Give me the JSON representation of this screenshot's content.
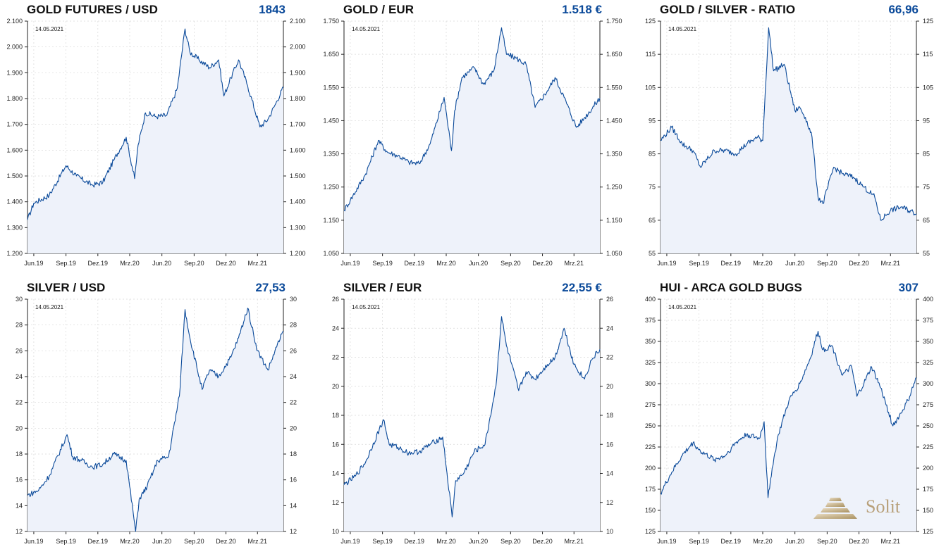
{
  "colors": {
    "line": "#0b4a9a",
    "fill": "#eef2fa",
    "value": "#0b4a9a",
    "grid": "#d8d8d8"
  },
  "x_ticks": [
    "Jun.19",
    "Sep.19",
    "Dez.19",
    "Mrz.20",
    "Jun.20",
    "Sep.20",
    "Dez.20",
    "Mrz.21"
  ],
  "date_label": "14.05.2021",
  "logo_text": "Solit",
  "chart_data": [
    {
      "type": "line",
      "title": "GOLD FUTURES / USD",
      "current_value": "1843",
      "ylim": [
        1200,
        2100
      ],
      "y_ticks": [
        "2.100",
        "2.000",
        "1.900",
        "1.800",
        "1.700",
        "1.600",
        "1.500",
        "1.400",
        "1.300",
        "1.200"
      ],
      "x": [
        "2019-05-14",
        "2019-06-01",
        "2019-07-15",
        "2019-09-01",
        "2019-10-01",
        "2019-11-15",
        "2019-12-15",
        "2020-01-15",
        "2020-02-20",
        "2020-03-15",
        "2020-03-25",
        "2020-04-15",
        "2020-05-15",
        "2020-06-15",
        "2020-07-15",
        "2020-08-06",
        "2020-08-20",
        "2020-09-15",
        "2020-10-15",
        "2020-11-10",
        "2020-11-25",
        "2020-12-15",
        "2021-01-06",
        "2021-02-01",
        "2021-03-08",
        "2021-03-31",
        "2021-04-20",
        "2021-05-14"
      ],
      "values": [
        1330,
        1395,
        1425,
        1540,
        1500,
        1465,
        1475,
        1560,
        1650,
        1490,
        1620,
        1745,
        1730,
        1735,
        1840,
        2070,
        1980,
        1950,
        1920,
        1950,
        1810,
        1880,
        1950,
        1850,
        1690,
        1720,
        1775,
        1843
      ]
    },
    {
      "type": "line",
      "title": "GOLD / EUR",
      "current_value": "1.518 €",
      "ylim": [
        1050,
        1750
      ],
      "y_ticks": [
        "1.750",
        "1.650",
        "1.550",
        "1.450",
        "1.350",
        "1.250",
        "1.150",
        "1.050"
      ],
      "x": [
        "2019-05-14",
        "2019-06-01",
        "2019-07-15",
        "2019-08-20",
        "2019-09-15",
        "2019-10-15",
        "2019-11-15",
        "2019-12-15",
        "2020-01-15",
        "2020-02-24",
        "2020-03-16",
        "2020-03-25",
        "2020-04-15",
        "2020-05-20",
        "2020-06-15",
        "2020-07-15",
        "2020-08-06",
        "2020-08-20",
        "2020-09-15",
        "2020-10-15",
        "2020-11-10",
        "2020-12-15",
        "2021-01-06",
        "2021-02-01",
        "2021-03-08",
        "2021-04-01",
        "2021-05-14"
      ],
      "values": [
        1180,
        1210,
        1290,
        1390,
        1355,
        1345,
        1325,
        1320,
        1380,
        1520,
        1360,
        1480,
        1580,
        1610,
        1560,
        1600,
        1730,
        1650,
        1640,
        1620,
        1490,
        1540,
        1580,
        1520,
        1430,
        1460,
        1518
      ]
    },
    {
      "type": "line",
      "title": "GOLD / SILVER - RATIO",
      "current_value": "66,96",
      "ylim": [
        55,
        125
      ],
      "y_ticks": [
        "125",
        "115",
        "105",
        "95",
        "85",
        "75",
        "65",
        "55"
      ],
      "x": [
        "2019-05-14",
        "2019-06-15",
        "2019-07-15",
        "2019-08-15",
        "2019-09-05",
        "2019-10-15",
        "2019-11-15",
        "2019-12-15",
        "2020-01-15",
        "2020-02-15",
        "2020-03-01",
        "2020-03-18",
        "2020-04-01",
        "2020-05-01",
        "2020-06-01",
        "2020-06-15",
        "2020-07-01",
        "2020-07-20",
        "2020-08-06",
        "2020-08-20",
        "2020-09-20",
        "2020-10-15",
        "2020-11-15",
        "2020-12-15",
        "2021-01-15",
        "2021-02-01",
        "2021-03-01",
        "2021-04-01",
        "2021-05-14"
      ],
      "values": [
        89,
        93,
        88,
        86,
        81,
        86,
        86,
        85,
        88,
        90,
        89,
        123,
        110,
        112,
        98,
        99,
        96,
        90,
        72,
        70,
        81,
        79,
        78,
        75,
        72,
        65,
        68,
        69,
        66.96
      ]
    },
    {
      "type": "line",
      "title": "SILVER / USD",
      "current_value": "27,53",
      "ylim": [
        12,
        30
      ],
      "y_ticks": [
        "30",
        "28",
        "26",
        "24",
        "22",
        "20",
        "18",
        "16",
        "14",
        "12"
      ],
      "x": [
        "2019-05-14",
        "2019-06-15",
        "2019-07-15",
        "2019-09-04",
        "2019-09-20",
        "2019-10-15",
        "2019-11-15",
        "2019-12-15",
        "2020-01-15",
        "2020-02-20",
        "2020-03-18",
        "2020-03-28",
        "2020-04-20",
        "2020-05-20",
        "2020-06-20",
        "2020-07-21",
        "2020-08-06",
        "2020-08-20",
        "2020-09-24",
        "2020-10-15",
        "2020-11-10",
        "2020-12-15",
        "2021-01-06",
        "2021-02-01",
        "2021-03-01",
        "2021-03-31",
        "2021-04-20",
        "2021-05-14"
      ],
      "values": [
        14.8,
        15.2,
        16.3,
        19.5,
        17.8,
        17.5,
        17.0,
        17.2,
        18.0,
        17.5,
        12.0,
        14.5,
        15.5,
        17.5,
        17.8,
        22.5,
        29.2,
        27.0,
        23.0,
        24.5,
        24.0,
        25.5,
        27.0,
        29.3,
        26.0,
        24.5,
        26.0,
        27.53
      ]
    },
    {
      "type": "line",
      "title": "SILVER / EUR",
      "current_value": "22,55 €",
      "ylim": [
        10,
        26
      ],
      "y_ticks": [
        "26",
        "24",
        "22",
        "20",
        "18",
        "16",
        "14",
        "12",
        "10"
      ],
      "x": [
        "2019-05-14",
        "2019-06-15",
        "2019-07-15",
        "2019-09-04",
        "2019-09-20",
        "2019-10-15",
        "2019-11-15",
        "2019-12-15",
        "2020-01-15",
        "2020-02-20",
        "2020-03-18",
        "2020-03-28",
        "2020-04-20",
        "2020-05-20",
        "2020-06-20",
        "2020-07-21",
        "2020-08-06",
        "2020-08-20",
        "2020-09-24",
        "2020-10-15",
        "2020-11-10",
        "2020-12-15",
        "2021-01-06",
        "2021-02-01",
        "2021-03-01",
        "2021-03-31",
        "2021-04-20",
        "2021-05-14"
      ],
      "values": [
        13.2,
        13.8,
        14.8,
        17.7,
        16.0,
        15.8,
        15.4,
        15.5,
        16.0,
        16.5,
        11.0,
        13.5,
        14.0,
        15.5,
        16.0,
        20.0,
        24.8,
        22.8,
        19.7,
        21.0,
        20.5,
        21.5,
        22.0,
        24.0,
        21.5,
        20.5,
        21.8,
        22.55
      ]
    },
    {
      "type": "line",
      "title": "HUI - ARCA GOLD BUGS",
      "current_value": "307",
      "ylim": [
        125,
        400
      ],
      "y_ticks": [
        "400",
        "375",
        "350",
        "325",
        "300",
        "275",
        "250",
        "225",
        "200",
        "175",
        "150",
        "125"
      ],
      "x": [
        "2019-05-14",
        "2019-06-15",
        "2019-07-15",
        "2019-08-15",
        "2019-09-05",
        "2019-10-15",
        "2019-11-15",
        "2019-12-15",
        "2020-01-15",
        "2020-02-20",
        "2020-03-05",
        "2020-03-16",
        "2020-03-28",
        "2020-04-15",
        "2020-05-15",
        "2020-06-15",
        "2020-07-15",
        "2020-08-06",
        "2020-08-20",
        "2020-09-15",
        "2020-10-15",
        "2020-11-10",
        "2020-11-25",
        "2020-12-15",
        "2021-01-06",
        "2021-02-01",
        "2021-03-08",
        "2021-03-31",
        "2021-04-20",
        "2021-05-14"
      ],
      "values": [
        170,
        195,
        215,
        230,
        220,
        210,
        215,
        230,
        240,
        235,
        255,
        165,
        200,
        240,
        280,
        300,
        330,
        362,
        340,
        345,
        310,
        320,
        285,
        300,
        320,
        295,
        250,
        265,
        280,
        307
      ]
    }
  ]
}
